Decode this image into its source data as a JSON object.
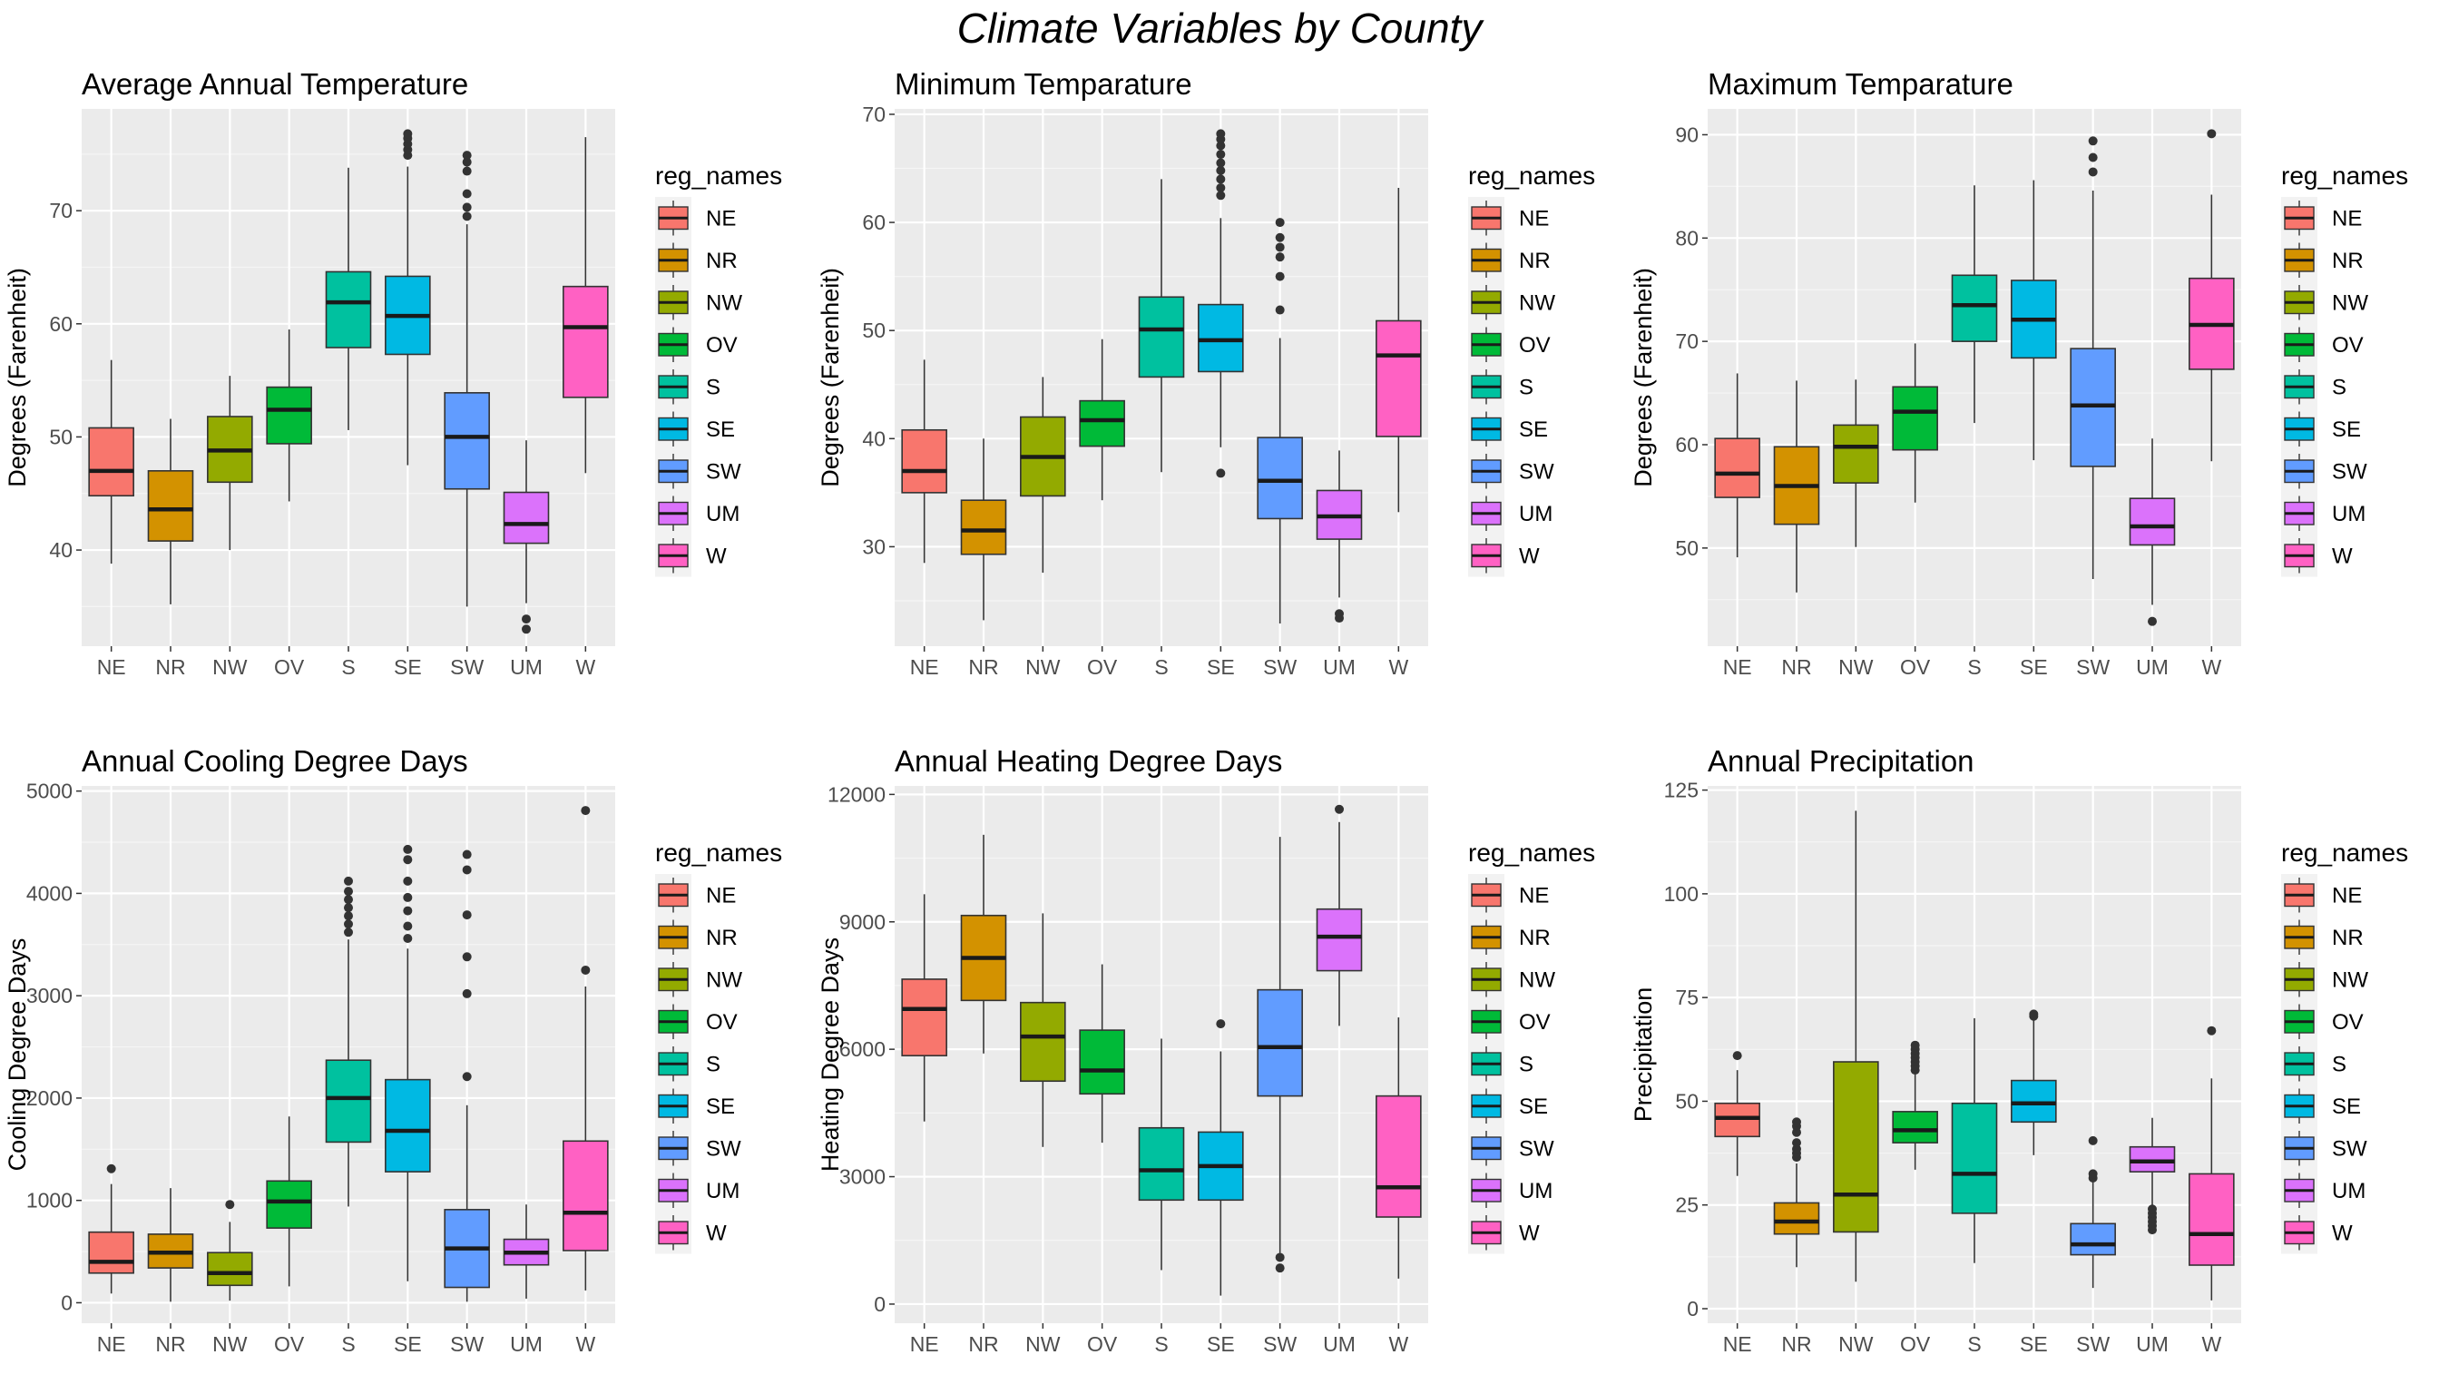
{
  "suptitle": "Climate Variables by County",
  "legend": {
    "title": "reg_names",
    "entries": [
      "NE",
      "NR",
      "NW",
      "OV",
      "S",
      "SE",
      "SW",
      "UM",
      "W"
    ],
    "colors": [
      "#F8766D",
      "#D39200",
      "#93AA00",
      "#00BA38",
      "#00C19F",
      "#00B9E3",
      "#619CFF",
      "#DB72FB",
      "#FF61C3"
    ]
  },
  "chart_data": [
    {
      "type": "box",
      "title": "Average Annual Temperature",
      "ylabel": "Degrees (Farenheit)",
      "xlabel": "",
      "ylim": [
        31.5,
        79
      ],
      "yticks": [
        40,
        50,
        60,
        70
      ],
      "ytick_labels": [
        "40",
        "50",
        "60",
        "70"
      ],
      "categories": [
        "NE",
        "NR",
        "NW",
        "OV",
        "S",
        "SE",
        "SW",
        "UM",
        "W"
      ],
      "boxes": [
        {
          "min": 38.8,
          "q1": 44.8,
          "median": 47.0,
          "q3": 50.8,
          "max": 56.8,
          "outliers": []
        },
        {
          "min": 35.2,
          "q1": 40.8,
          "median": 43.6,
          "q3": 47.0,
          "max": 51.6,
          "outliers": []
        },
        {
          "min": 40.0,
          "q1": 46.0,
          "median": 48.8,
          "q3": 51.8,
          "max": 55.4,
          "outliers": []
        },
        {
          "min": 44.3,
          "q1": 49.4,
          "median": 52.4,
          "q3": 54.4,
          "max": 59.5,
          "outliers": []
        },
        {
          "min": 50.6,
          "q1": 57.9,
          "median": 61.9,
          "q3": 64.6,
          "max": 73.8,
          "outliers": []
        },
        {
          "min": 47.5,
          "q1": 57.3,
          "median": 60.7,
          "q3": 64.2,
          "max": 73.9,
          "outliers": [
            74.9,
            75.4,
            75.9,
            76.4,
            76.8
          ]
        },
        {
          "min": 35.0,
          "q1": 45.4,
          "median": 50.0,
          "q3": 53.9,
          "max": 68.8,
          "outliers": [
            69.5,
            70.3,
            71.5,
            73.5,
            74.3,
            74.9
          ]
        },
        {
          "min": 35.3,
          "q1": 40.6,
          "median": 42.3,
          "q3": 45.1,
          "max": 49.7,
          "outliers": [
            33.0,
            33.9
          ]
        },
        {
          "min": 46.8,
          "q1": 53.5,
          "median": 59.7,
          "q3": 63.3,
          "max": 76.5,
          "outliers": []
        }
      ]
    },
    {
      "type": "box",
      "title": "Minimum Temparature",
      "ylabel": "Degrees (Farenheit)",
      "xlabel": "",
      "ylim": [
        20.8,
        70.5
      ],
      "yticks": [
        30,
        40,
        50,
        60,
        70
      ],
      "ytick_labels": [
        "30",
        "40",
        "50",
        "60",
        "70"
      ],
      "categories": [
        "NE",
        "NR",
        "NW",
        "OV",
        "S",
        "SE",
        "SW",
        "UM",
        "W"
      ],
      "boxes": [
        {
          "min": 28.5,
          "q1": 35.0,
          "median": 37.0,
          "q3": 40.8,
          "max": 47.3,
          "outliers": []
        },
        {
          "min": 23.2,
          "q1": 29.3,
          "median": 31.5,
          "q3": 34.3,
          "max": 40.0,
          "outliers": []
        },
        {
          "min": 27.6,
          "q1": 34.7,
          "median": 38.3,
          "q3": 42.0,
          "max": 45.7,
          "outliers": []
        },
        {
          "min": 34.3,
          "q1": 39.3,
          "median": 41.7,
          "q3": 43.5,
          "max": 49.2,
          "outliers": []
        },
        {
          "min": 36.9,
          "q1": 45.7,
          "median": 50.1,
          "q3": 53.1,
          "max": 64.0,
          "outliers": []
        },
        {
          "min": 39.2,
          "q1": 46.2,
          "median": 49.1,
          "q3": 52.4,
          "max": 60.4,
          "outliers": [
            36.8,
            62.5,
            63.2,
            64.0,
            64.8,
            65.5,
            66.3,
            67.1,
            67.7,
            68.2
          ]
        },
        {
          "min": 22.9,
          "q1": 32.6,
          "median": 36.1,
          "q3": 40.1,
          "max": 49.3,
          "outliers": [
            51.9,
            55.0,
            56.8,
            57.7,
            58.6,
            60.0
          ]
        },
        {
          "min": 25.3,
          "q1": 30.7,
          "median": 32.8,
          "q3": 35.2,
          "max": 38.9,
          "outliers": [
            23.4,
            23.8
          ]
        },
        {
          "min": 33.2,
          "q1": 40.2,
          "median": 47.7,
          "q3": 50.9,
          "max": 63.2,
          "outliers": []
        }
      ]
    },
    {
      "type": "box",
      "title": "Maximum Temparature",
      "ylabel": "Degrees (Farenheit)",
      "xlabel": "",
      "ylim": [
        40.5,
        92.5
      ],
      "yticks": [
        50,
        60,
        70,
        80,
        90
      ],
      "ytick_labels": [
        "50",
        "60",
        "70",
        "80",
        "90"
      ],
      "categories": [
        "NE",
        "NR",
        "NW",
        "OV",
        "S",
        "SE",
        "SW",
        "UM",
        "W"
      ],
      "boxes": [
        {
          "min": 49.1,
          "q1": 54.9,
          "median": 57.2,
          "q3": 60.6,
          "max": 66.9,
          "outliers": []
        },
        {
          "min": 45.7,
          "q1": 52.3,
          "median": 56.0,
          "q3": 59.8,
          "max": 66.2,
          "outliers": []
        },
        {
          "min": 50.1,
          "q1": 56.3,
          "median": 59.8,
          "q3": 61.9,
          "max": 66.3,
          "outliers": []
        },
        {
          "min": 54.4,
          "q1": 59.5,
          "median": 63.2,
          "q3": 65.6,
          "max": 69.8,
          "outliers": []
        },
        {
          "min": 62.1,
          "q1": 70.0,
          "median": 73.5,
          "q3": 76.4,
          "max": 85.1,
          "outliers": []
        },
        {
          "min": 58.5,
          "q1": 68.4,
          "median": 72.1,
          "q3": 75.9,
          "max": 85.6,
          "outliers": []
        },
        {
          "min": 47.0,
          "q1": 57.9,
          "median": 63.8,
          "q3": 69.3,
          "max": 84.6,
          "outliers": [
            86.4,
            87.8,
            89.4
          ]
        },
        {
          "min": 44.5,
          "q1": 50.3,
          "median": 52.1,
          "q3": 54.8,
          "max": 60.6,
          "outliers": [
            42.9
          ]
        },
        {
          "min": 58.4,
          "q1": 67.3,
          "median": 71.6,
          "q3": 76.1,
          "max": 84.2,
          "outliers": [
            90.1
          ]
        }
      ]
    },
    {
      "type": "box",
      "title": "Annual Cooling Degree Days",
      "ylabel": "Cooling Degree Days",
      "xlabel": "",
      "ylim": [
        -200,
        5050
      ],
      "yticks": [
        0,
        1000,
        2000,
        3000,
        4000,
        5000
      ],
      "ytick_labels": [
        "0",
        "1000",
        "2000",
        "3000",
        "4000",
        "5000"
      ],
      "categories": [
        "NE",
        "NR",
        "NW",
        "OV",
        "S",
        "SE",
        "SW",
        "UM",
        "W"
      ],
      "boxes": [
        {
          "min": 90,
          "q1": 290,
          "median": 400,
          "q3": 690,
          "max": 1160,
          "outliers": [
            1310
          ]
        },
        {
          "min": 10,
          "q1": 340,
          "median": 490,
          "q3": 670,
          "max": 1120,
          "outliers": []
        },
        {
          "min": 20,
          "q1": 170,
          "median": 290,
          "q3": 490,
          "max": 790,
          "outliers": [
            960
          ]
        },
        {
          "min": 160,
          "q1": 730,
          "median": 990,
          "q3": 1190,
          "max": 1820,
          "outliers": []
        },
        {
          "min": 940,
          "q1": 1570,
          "median": 2000,
          "q3": 2370,
          "max": 3550,
          "outliers": [
            3620,
            3700,
            3780,
            3860,
            3940,
            4020,
            4120
          ]
        },
        {
          "min": 210,
          "q1": 1280,
          "median": 1680,
          "q3": 2180,
          "max": 3460,
          "outliers": [
            3560,
            3680,
            3830,
            3960,
            4120,
            4330,
            4430
          ]
        },
        {
          "min": 10,
          "q1": 150,
          "median": 530,
          "q3": 910,
          "max": 1930,
          "outliers": [
            2210,
            3020,
            3380,
            3790,
            4230,
            4380
          ]
        },
        {
          "min": 40,
          "q1": 370,
          "median": 490,
          "q3": 620,
          "max": 960,
          "outliers": []
        },
        {
          "min": 120,
          "q1": 510,
          "median": 880,
          "q3": 1580,
          "max": 3090,
          "outliers": [
            3250,
            4810
          ]
        }
      ]
    },
    {
      "type": "box",
      "title": "Annual Heating Degree Days",
      "ylabel": "Heating Degree Days",
      "xlabel": "",
      "ylim": [
        -450,
        12200
      ],
      "yticks": [
        0,
        3000,
        6000,
        9000,
        12000
      ],
      "ytick_labels": [
        "0",
        "3000",
        "6000",
        "9000",
        "12000"
      ],
      "categories": [
        "NE",
        "NR",
        "NW",
        "OV",
        "S",
        "SE",
        "SW",
        "UM",
        "W"
      ],
      "boxes": [
        {
          "min": 4300,
          "q1": 5850,
          "median": 6950,
          "q3": 7650,
          "max": 9650,
          "outliers": []
        },
        {
          "min": 5900,
          "q1": 7150,
          "median": 8150,
          "q3": 9150,
          "max": 11050,
          "outliers": []
        },
        {
          "min": 3700,
          "q1": 5250,
          "median": 6300,
          "q3": 7100,
          "max": 9200,
          "outliers": []
        },
        {
          "min": 3800,
          "q1": 4950,
          "median": 5500,
          "q3": 6450,
          "max": 8000,
          "outliers": []
        },
        {
          "min": 800,
          "q1": 2450,
          "median": 3150,
          "q3": 4150,
          "max": 6250,
          "outliers": []
        },
        {
          "min": 200,
          "q1": 2450,
          "median": 3250,
          "q3": 4050,
          "max": 5950,
          "outliers": [
            6600
          ]
        },
        {
          "min": 1200,
          "q1": 4900,
          "median": 6050,
          "q3": 7400,
          "max": 11000,
          "outliers": [
            850,
            1100
          ]
        },
        {
          "min": 6550,
          "q1": 7850,
          "median": 8650,
          "q3": 9300,
          "max": 11350,
          "outliers": [
            11650
          ]
        },
        {
          "min": 600,
          "q1": 2050,
          "median": 2750,
          "q3": 4900,
          "max": 6750,
          "outliers": []
        }
      ]
    },
    {
      "type": "box",
      "title": "Annual Precipitation",
      "ylabel": "Precipitation",
      "xlabel": "",
      "ylim": [
        -3.5,
        126
      ],
      "yticks": [
        0,
        25,
        50,
        75,
        100,
        125
      ],
      "ytick_labels": [
        "0",
        "25",
        "50",
        "75",
        "100",
        "125"
      ],
      "categories": [
        "NE",
        "NR",
        "NW",
        "OV",
        "S",
        "SE",
        "SW",
        "UM",
        "W"
      ],
      "boxes": [
        {
          "min": 32.0,
          "q1": 41.5,
          "median": 46.0,
          "q3": 49.5,
          "max": 57.5,
          "outliers": [
            61.0
          ]
        },
        {
          "min": 10.0,
          "q1": 18.0,
          "median": 21.0,
          "q3": 25.5,
          "max": 35.0,
          "outliers": [
            36.5,
            37.5,
            38.5,
            40.0,
            42.5,
            44.0,
            45.0
          ]
        },
        {
          "min": 6.5,
          "q1": 18.5,
          "median": 27.5,
          "q3": 59.5,
          "max": 120.0,
          "outliers": []
        },
        {
          "min": 33.5,
          "q1": 40.0,
          "median": 43.0,
          "q3": 47.5,
          "max": 56.5,
          "outliers": [
            57.5,
            58.5,
            59.5,
            60.5,
            61.5,
            62.5,
            63.5
          ]
        },
        {
          "min": 11.0,
          "q1": 23.0,
          "median": 32.5,
          "q3": 49.5,
          "max": 70.0,
          "outliers": []
        },
        {
          "min": 37.0,
          "q1": 45.0,
          "median": 49.5,
          "q3": 55.0,
          "max": 69.5,
          "outliers": [
            70.5,
            71.0
          ]
        },
        {
          "min": 5.0,
          "q1": 13.0,
          "median": 15.5,
          "q3": 20.5,
          "max": 30.5,
          "outliers": [
            31.5,
            32.5,
            40.5
          ]
        },
        {
          "min": 25.0,
          "q1": 33.0,
          "median": 35.5,
          "q3": 39.0,
          "max": 46.0,
          "outliers": [
            19.0,
            20.0,
            21.0,
            22.0,
            23.0,
            24.0
          ]
        },
        {
          "min": 2.0,
          "q1": 10.5,
          "median": 18.0,
          "q3": 32.5,
          "max": 55.5,
          "outliers": [
            67.0
          ]
        }
      ]
    }
  ]
}
